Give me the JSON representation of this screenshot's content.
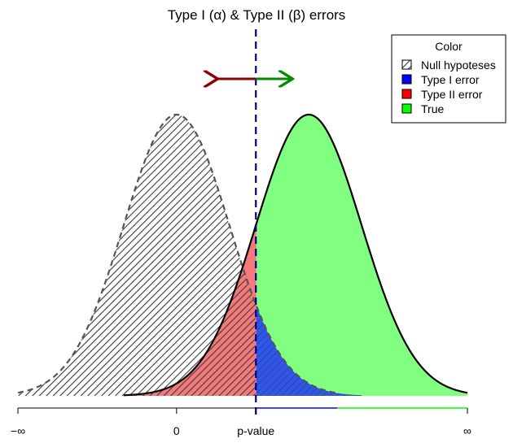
{
  "chart_data": {
    "type": "area",
    "title": "Type I (α) & Type II (β) errors",
    "xlabel": "p-value",
    "ticks": [
      {
        "x": -3.0,
        "label": "−∞"
      },
      {
        "x": 0.0,
        "label": "0"
      },
      {
        "x": 1.5,
        "label": "p-value"
      },
      {
        "x": 5.5,
        "label": "∞"
      }
    ],
    "xlim": [
      -3.0,
      5.5
    ],
    "ylim": [
      0,
      0.4
    ],
    "critical_value": 1.5,
    "distributions": {
      "null": {
        "mean": 0.0,
        "sd": 1.0
      },
      "alternative": {
        "mean": 2.5,
        "sd": 1.0
      }
    },
    "legend": {
      "title": "Color",
      "position": "top-right",
      "entries": [
        {
          "label": "Null hypoteses",
          "fill": "hatch"
        },
        {
          "label": "Type I error",
          "color": "#0000ff"
        },
        {
          "label": "Type II error",
          "color": "#ff0000"
        },
        {
          "label": "True",
          "color": "#00ff00"
        }
      ]
    },
    "arrows": [
      {
        "direction": "left",
        "color": "#8b0000"
      },
      {
        "direction": "right",
        "color": "#008b00"
      }
    ]
  },
  "colors": {
    "true_fill": "#80ff80",
    "type2_fill": "#f47a7a",
    "type1_fill": "#2f56f0",
    "hatch": "#3a3a3a",
    "critical_line": "#00008b",
    "axis_blue": "#0000ff",
    "axis_green": "#00ff00"
  }
}
